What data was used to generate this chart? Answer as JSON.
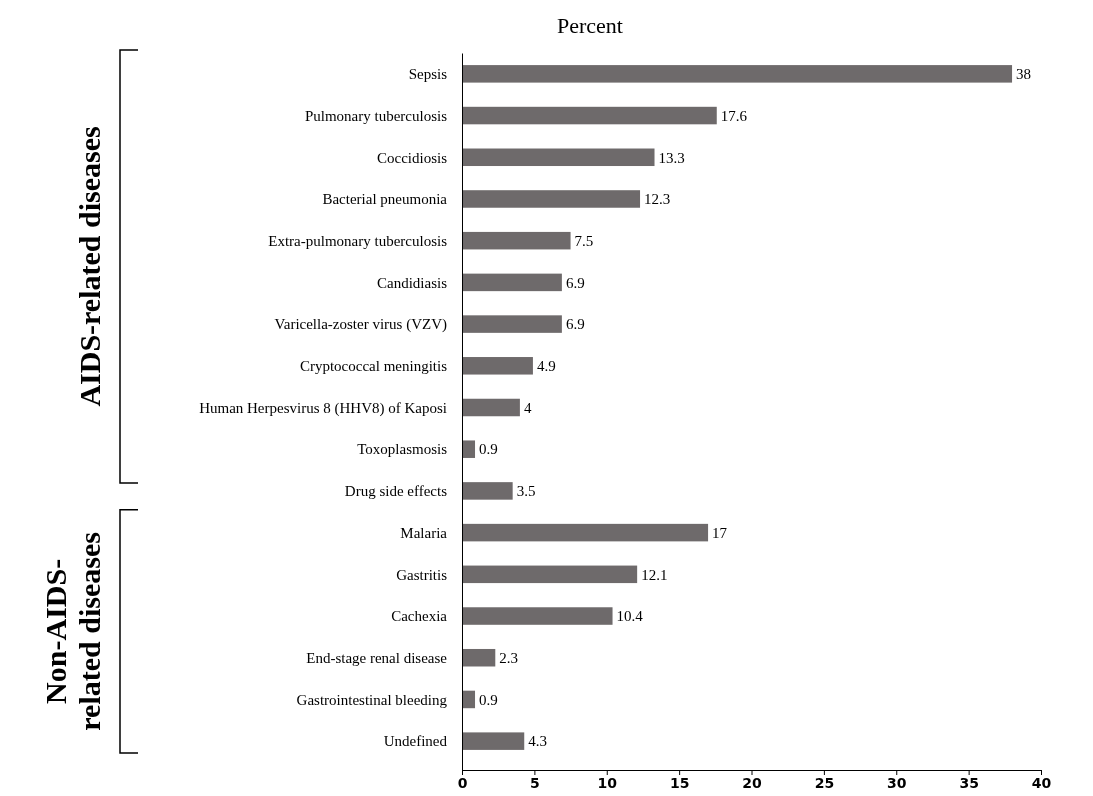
{
  "chart_data": {
    "type": "bar",
    "orientation": "horizontal",
    "title": "Percent",
    "categories": [
      "Sepsis",
      "Pulmonary tuberculosis",
      "Coccidiosis",
      "Bacterial pneumonia",
      "Extra-pulmonary tuberculosis",
      "Candidiasis",
      "Varicella-zoster virus (VZV)",
      "Cryptococcal meningitis",
      "Human Herpesvirus 8 (HHV8) of Kaposi",
      "Toxoplasmosis",
      "Drug side effects",
      "Malaria",
      "Gastritis",
      "Cachexia",
      "End-stage renal disease",
      "Gastrointestinal bleeding",
      "Undefined"
    ],
    "values": [
      38,
      17.6,
      13.3,
      12.3,
      7.5,
      6.9,
      6.9,
      4.9,
      4,
      0.9,
      3.5,
      17,
      12.1,
      10.4,
      2.3,
      0.9,
      4.3
    ],
    "color": "#6e6a6b",
    "xlim": [
      0,
      40
    ],
    "xticks": [
      0,
      5,
      10,
      15,
      20,
      25,
      30,
      35,
      40
    ],
    "data_labels": true,
    "annotations": [
      "AIDS-related diseases",
      "Non-AIDS-related diseases"
    ]
  }
}
